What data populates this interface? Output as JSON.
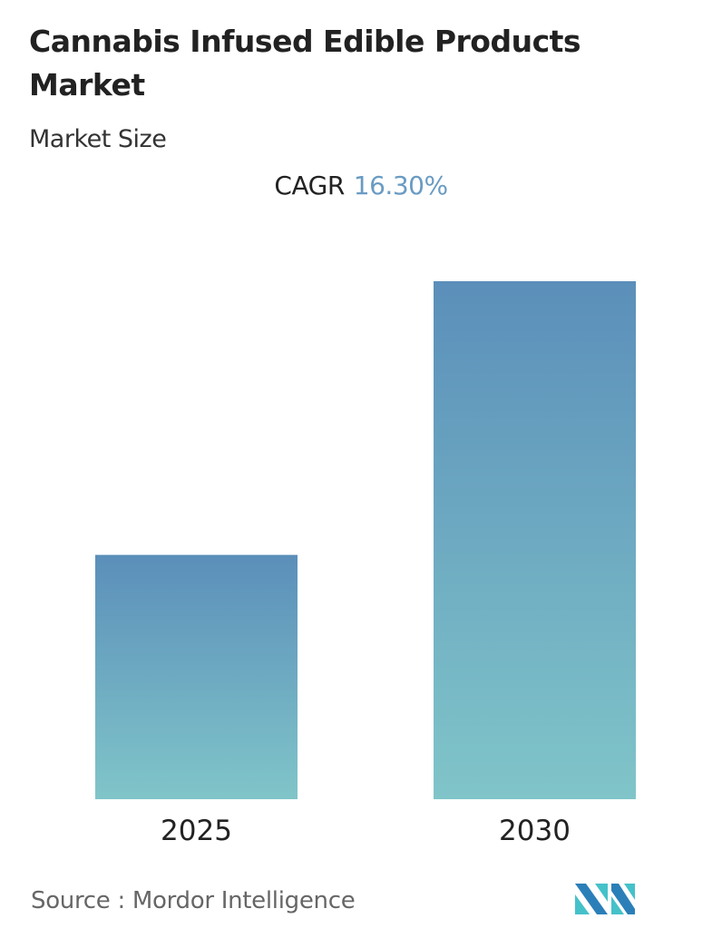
{
  "header": {
    "title": "Cannabis Infused Edible Products Market",
    "subtitle": "Market Size",
    "cagr_label": "CAGR",
    "cagr_value": "16.30%"
  },
  "chart_data": {
    "type": "bar",
    "title": "Cannabis Infused Edible Products Market",
    "categories": [
      "2025",
      "2030"
    ],
    "values": [
      1.0,
      2.12
    ],
    "value_note_unit": "relative",
    "xlabel": "",
    "ylabel": "",
    "grid": false,
    "colors": {
      "bar_top": "#5b8fba",
      "bar_bottom": "#80c5c9"
    }
  },
  "footer": {
    "source": "Source :  Mordor Intelligence",
    "logo_text": "Mordor Intelligence",
    "logo_colors": [
      "#2b7fb8",
      "#45c1c9"
    ]
  }
}
